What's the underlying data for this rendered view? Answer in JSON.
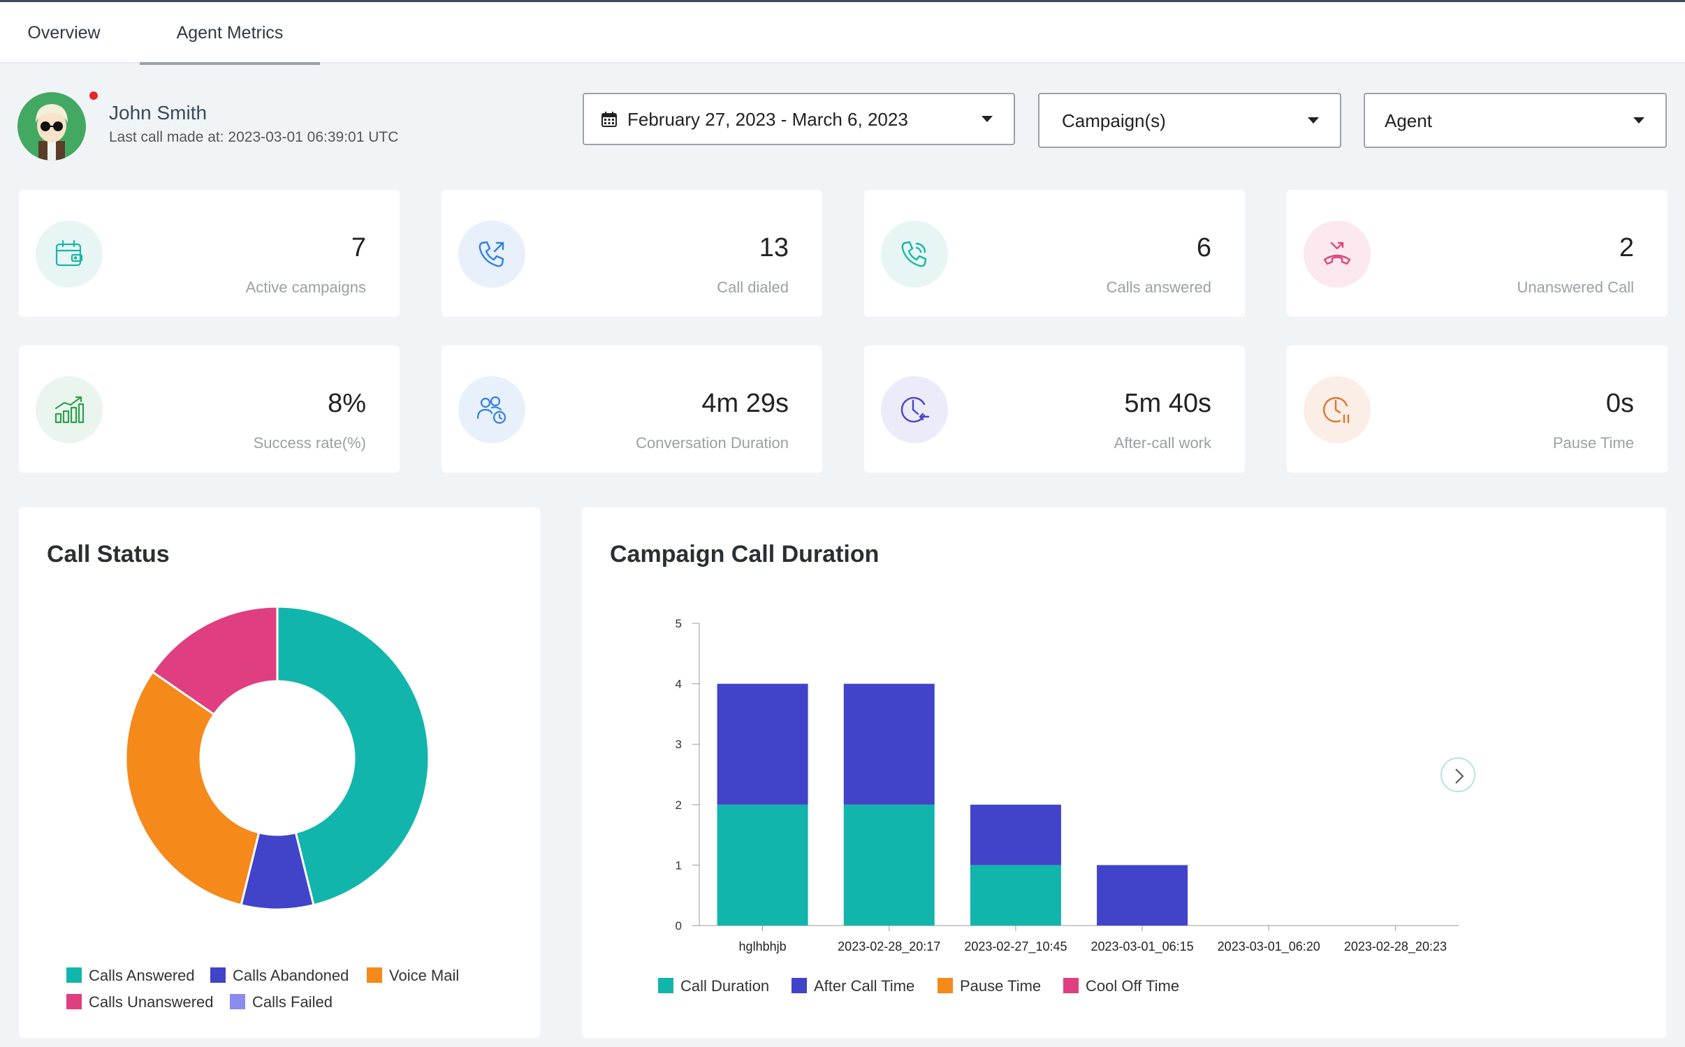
{
  "tabs": [
    {
      "label": "Overview"
    },
    {
      "label": "Agent Metrics",
      "active": true
    }
  ],
  "agent": {
    "name": "John Smith",
    "last_call": "Last call made at: 2023-03-01 06:39:01 UTC",
    "status_color": "#e5262b"
  },
  "filters": {
    "date_range": "February 27, 2023 - March 6, 2023",
    "campaign": "Campaign(s)",
    "agent": "Agent"
  },
  "cards": [
    {
      "value": "7",
      "label": "Active campaigns",
      "icon": "calendar-wallet-icon",
      "color": "#1ab5a5"
    },
    {
      "value": "13",
      "label": "Call dialed",
      "icon": "phone-outgoing-icon",
      "color": "#2f7fe0"
    },
    {
      "value": "6",
      "label": "Calls answered",
      "icon": "phone-ringing-icon",
      "color": "#1ab5a5"
    },
    {
      "value": "2",
      "label": "Unanswered Call",
      "icon": "phone-missed-icon",
      "color": "#e0467f"
    },
    {
      "value": "8%",
      "label": "Success rate(%)",
      "icon": "bar-growth-icon",
      "color": "#2e9e4f"
    },
    {
      "value": "4m 29s",
      "label": "Conversation Duration",
      "icon": "users-clock-icon",
      "color": "#2f7fe0"
    },
    {
      "value": "5m 40s",
      "label": "After-call work",
      "icon": "clock-back-icon",
      "color": "#4a44c9"
    },
    {
      "value": "0s",
      "label": "Pause Time",
      "icon": "clock-pause-icon",
      "color": "#e2742a"
    }
  ],
  "call_status": {
    "title": "Call Status",
    "legend": [
      {
        "label": "Calls Answered",
        "color": "#12b5ab"
      },
      {
        "label": "Calls Abandoned",
        "color": "#4144c9"
      },
      {
        "label": "Voice Mail",
        "color": "#f5891a"
      },
      {
        "label": "Calls Unanswered",
        "color": "#df3f80"
      },
      {
        "label": "Calls Failed",
        "color": "#8a8cf0"
      }
    ]
  },
  "campaign_duration": {
    "title": "Campaign Call Duration",
    "legend": [
      {
        "label": "Call Duration",
        "color": "#12b5ab"
      },
      {
        "label": "After Call Time",
        "color": "#4144c9"
      },
      {
        "label": "Pause Time",
        "color": "#f5891a"
      },
      {
        "label": "Cool Off Time",
        "color": "#df3f80"
      }
    ]
  },
  "chart_data": [
    {
      "type": "pie",
      "title": "Call Status",
      "donut": true,
      "labels": [
        "Calls Answered",
        "Calls Abandoned",
        "Voice Mail",
        "Calls Unanswered",
        "Calls Failed"
      ],
      "values": [
        6,
        1,
        4,
        2,
        0
      ],
      "colors": [
        "#12b5ab",
        "#4144c9",
        "#f5891a",
        "#df3f80",
        "#8a8cf0"
      ],
      "legend": "bottom"
    },
    {
      "type": "bar",
      "stacked": true,
      "title": "Campaign Call Duration",
      "categories": [
        "hglhbhjb",
        "2023-02-28_20:17",
        "2023-02-27_10:45",
        "2023-03-01_06:15",
        "2023-03-01_06:20",
        "2023-02-28_20:23"
      ],
      "series": [
        {
          "name": "Call Duration",
          "values": [
            2,
            2,
            1,
            0,
            0,
            0
          ],
          "color": "#12b5ab"
        },
        {
          "name": "After Call Time",
          "values": [
            2,
            2,
            1,
            1,
            0,
            0
          ],
          "color": "#4144c9"
        },
        {
          "name": "Pause Time",
          "values": [
            0,
            0,
            0,
            0,
            0,
            0
          ],
          "color": "#f5891a"
        },
        {
          "name": "Cool Off Time",
          "values": [
            0,
            0,
            0,
            0,
            0,
            0
          ],
          "color": "#df3f80"
        }
      ],
      "ylim": [
        0,
        5
      ],
      "yticks": [
        0,
        1,
        2,
        3,
        4,
        5
      ],
      "legend": "bottom"
    }
  ]
}
